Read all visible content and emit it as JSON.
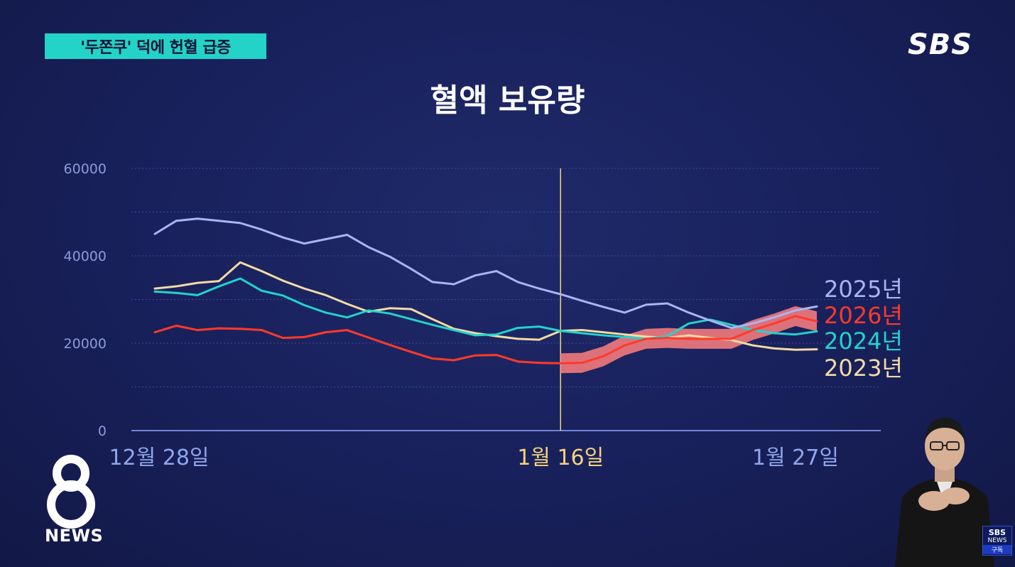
{
  "headline": "'두쫀쿠' 덕에 헌혈 급증",
  "channel_logo": "SBS",
  "program_logo": {
    "number": "8",
    "label": "NEWS"
  },
  "subscribe_badge": {
    "line1": "SBS",
    "line2": "NEWS",
    "line3": "구독"
  },
  "colors": {
    "background": "#18205a",
    "headline_bg": "#23d3c7",
    "s2025": "#aab4f2",
    "s2026": "#ff3a2a",
    "s2026_band": "#ff7f7f",
    "s2024": "#22d3cc",
    "s2023": "#f2dba4",
    "marker": "#f5d27a",
    "axis": "#6f86d8"
  },
  "chart_data": {
    "type": "line",
    "title": "혈액 보유량",
    "yticks": [
      0,
      20000,
      40000,
      60000
    ],
    "ylim": [
      0,
      60000
    ],
    "x_range": [
      0,
      31
    ],
    "x_labels": [
      {
        "x": 0,
        "text": "12월 28일",
        "highlight": false
      },
      {
        "x": 19,
        "text": "1월 16일",
        "highlight": true
      },
      {
        "x": 30,
        "text": "1월 27일",
        "highlight": false
      }
    ],
    "marker_x": 19,
    "grid": true,
    "series": [
      {
        "name": "2025년",
        "color": "#aab4f2",
        "values": [
          [
            0,
            45000
          ],
          [
            1,
            48000
          ],
          [
            2,
            48500
          ],
          [
            3,
            48000
          ],
          [
            4,
            47500
          ],
          [
            5,
            46000
          ],
          [
            6,
            44200
          ],
          [
            7,
            42800
          ],
          [
            8,
            43800
          ],
          [
            9,
            44800
          ],
          [
            10,
            42000
          ],
          [
            11,
            39800
          ],
          [
            12,
            37000
          ],
          [
            13,
            34000
          ],
          [
            14,
            33500
          ],
          [
            15,
            35500
          ],
          [
            16,
            36500
          ],
          [
            17,
            34000
          ],
          [
            18,
            32500
          ],
          [
            19,
            31200
          ],
          [
            20,
            29700
          ],
          [
            21,
            28300
          ],
          [
            22,
            27000
          ],
          [
            23,
            28800
          ],
          [
            24,
            29100
          ],
          [
            25,
            27000
          ],
          [
            26,
            25200
          ],
          [
            27,
            23500
          ],
          [
            28,
            24500
          ],
          [
            29,
            25900
          ],
          [
            30,
            27500
          ],
          [
            31,
            28400
          ]
        ]
      },
      {
        "name": "2026년",
        "color": "#ff3a2a",
        "band": true,
        "values": [
          [
            0,
            22500
          ],
          [
            1,
            24000
          ],
          [
            2,
            23000
          ],
          [
            3,
            23400
          ],
          [
            4,
            23300
          ],
          [
            5,
            23000
          ],
          [
            6,
            21200
          ],
          [
            7,
            21400
          ],
          [
            8,
            22500
          ],
          [
            9,
            23000
          ],
          [
            10,
            21300
          ],
          [
            11,
            19600
          ],
          [
            12,
            18000
          ],
          [
            13,
            16500
          ],
          [
            14,
            16100
          ],
          [
            15,
            17200
          ],
          [
            16,
            17300
          ],
          [
            17,
            15800
          ],
          [
            18,
            15500
          ],
          [
            19,
            15400
          ],
          [
            20,
            15500
          ],
          [
            21,
            17000
          ],
          [
            22,
            19500
          ],
          [
            23,
            21000
          ],
          [
            24,
            21200
          ],
          [
            25,
            21000
          ],
          [
            26,
            21000
          ],
          [
            27,
            21000
          ],
          [
            28,
            23000
          ],
          [
            29,
            24500
          ],
          [
            30,
            26200
          ],
          [
            31,
            25000
          ]
        ]
      },
      {
        "name": "2024년",
        "color": "#22d3cc",
        "values": [
          [
            0,
            31800
          ],
          [
            1,
            31500
          ],
          [
            2,
            31000
          ],
          [
            3,
            33000
          ],
          [
            4,
            34800
          ],
          [
            5,
            32000
          ],
          [
            6,
            30900
          ],
          [
            7,
            28700
          ],
          [
            8,
            27000
          ],
          [
            9,
            25900
          ],
          [
            10,
            27500
          ],
          [
            11,
            26800
          ],
          [
            12,
            25500
          ],
          [
            13,
            24200
          ],
          [
            14,
            23000
          ],
          [
            15,
            21800
          ],
          [
            16,
            22000
          ],
          [
            17,
            23500
          ],
          [
            18,
            23800
          ],
          [
            19,
            22800
          ],
          [
            20,
            22300
          ],
          [
            21,
            21800
          ],
          [
            22,
            21400
          ],
          [
            23,
            21000
          ],
          [
            24,
            21600
          ],
          [
            25,
            24500
          ],
          [
            26,
            25400
          ],
          [
            27,
            24200
          ],
          [
            28,
            23000
          ],
          [
            29,
            22300
          ],
          [
            30,
            22000
          ],
          [
            31,
            22700
          ]
        ]
      },
      {
        "name": "2023년",
        "color": "#f2dba4",
        "values": [
          [
            0,
            32500
          ],
          [
            1,
            33000
          ],
          [
            2,
            33800
          ],
          [
            3,
            34200
          ],
          [
            4,
            38500
          ],
          [
            5,
            36500
          ],
          [
            6,
            34300
          ],
          [
            7,
            32500
          ],
          [
            8,
            31000
          ],
          [
            9,
            29000
          ],
          [
            10,
            27200
          ],
          [
            11,
            28000
          ],
          [
            12,
            27800
          ],
          [
            13,
            25500
          ],
          [
            14,
            23300
          ],
          [
            15,
            22300
          ],
          [
            16,
            21600
          ],
          [
            17,
            21000
          ],
          [
            18,
            20800
          ],
          [
            19,
            22800
          ],
          [
            20,
            23000
          ],
          [
            21,
            22500
          ],
          [
            22,
            22000
          ],
          [
            23,
            21500
          ],
          [
            24,
            21200
          ],
          [
            25,
            21800
          ],
          [
            26,
            21200
          ],
          [
            27,
            20700
          ],
          [
            28,
            19500
          ],
          [
            29,
            18800
          ],
          [
            30,
            18500
          ],
          [
            31,
            18600
          ]
        ]
      }
    ]
  }
}
